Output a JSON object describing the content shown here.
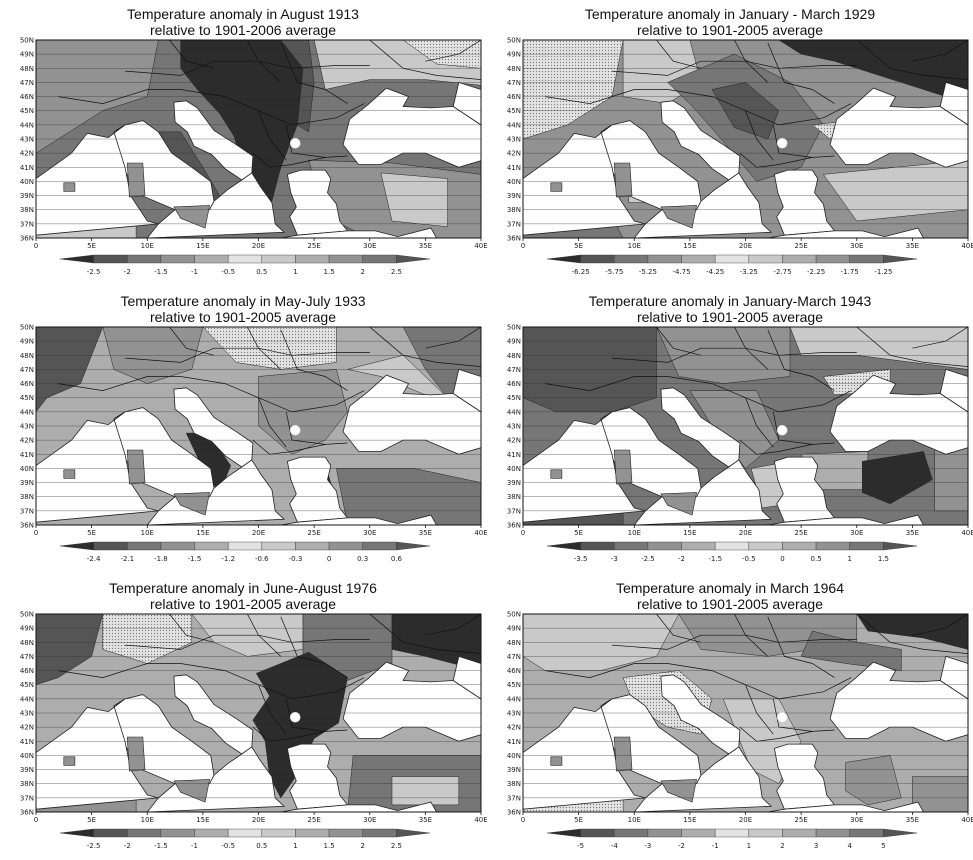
{
  "axes": {
    "lat_labels": [
      "50N",
      "49N",
      "48N",
      "47N",
      "46N",
      "45N",
      "44N",
      "43N",
      "42N",
      "41N",
      "40N",
      "39N",
      "38N",
      "37N",
      "36N"
    ],
    "lon_labels": [
      "0",
      "5E",
      "10E",
      "15E",
      "20E",
      "25E",
      "30E",
      "35E",
      "40E"
    ]
  },
  "colors": {
    "very_dark": "#2c2c2c",
    "dark": "#555555",
    "mid_dark": "#767676",
    "mid": "#929292",
    "mid_light": "#adadad",
    "light": "#c9c9c9",
    "very_light": "#e2e2e2",
    "sea": "#ffffff"
  },
  "panels": [
    {
      "title_line1": "Temperature anomaly in August 1913",
      "title_line2": "relative to 1901-2006 average",
      "colorbar": [
        "-2.5",
        "-2",
        "-1.5",
        "-1",
        "-0.5",
        "0.5",
        "1",
        "1.5",
        "2",
        "2.5"
      ]
    },
    {
      "title_line1": "Temperature anomaly in January - March 1929",
      "title_line2": "relative to 1901-2005 average",
      "colorbar": [
        "-6.25",
        "-5.75",
        "-5.25",
        "-4.75",
        "-4.25",
        "-3.25",
        "-2.75",
        "-2.25",
        "-1.75",
        "-1.25"
      ]
    },
    {
      "title_line1": "Temperature anomaly in May-July 1933",
      "title_line2": "relative to 1901-2005 average",
      "colorbar": [
        "-2.4",
        "-2.1",
        "-1.8",
        "-1.5",
        "-1.2",
        "-0.6",
        "-0.3",
        "0",
        "0.3",
        "0.6"
      ]
    },
    {
      "title_line1": "Temperature anomaly in January-March 1943",
      "title_line2": "relative to 1901-2005 average",
      "colorbar": [
        "-3.5",
        "-3",
        "-2.5",
        "-2",
        "-1.5",
        "-0.5",
        "0",
        "0.5",
        "1",
        "1.5"
      ]
    },
    {
      "title_line1": "Temperature anomaly in June-August 1976",
      "title_line2": "relative to 1901-2005 average",
      "colorbar": [
        "-2.5",
        "-2",
        "-1.5",
        "-1",
        "-0.5",
        "0.5",
        "1",
        "1.5",
        "2",
        "2.5"
      ]
    },
    {
      "title_line1": "Temperature anomaly in March 1964",
      "title_line2": "relative to 1901-2005 average",
      "colorbar": [
        "-5",
        "-4",
        "-3",
        "-2",
        "-1",
        "1",
        "2",
        "3",
        "4",
        "5"
      ]
    }
  ]
}
